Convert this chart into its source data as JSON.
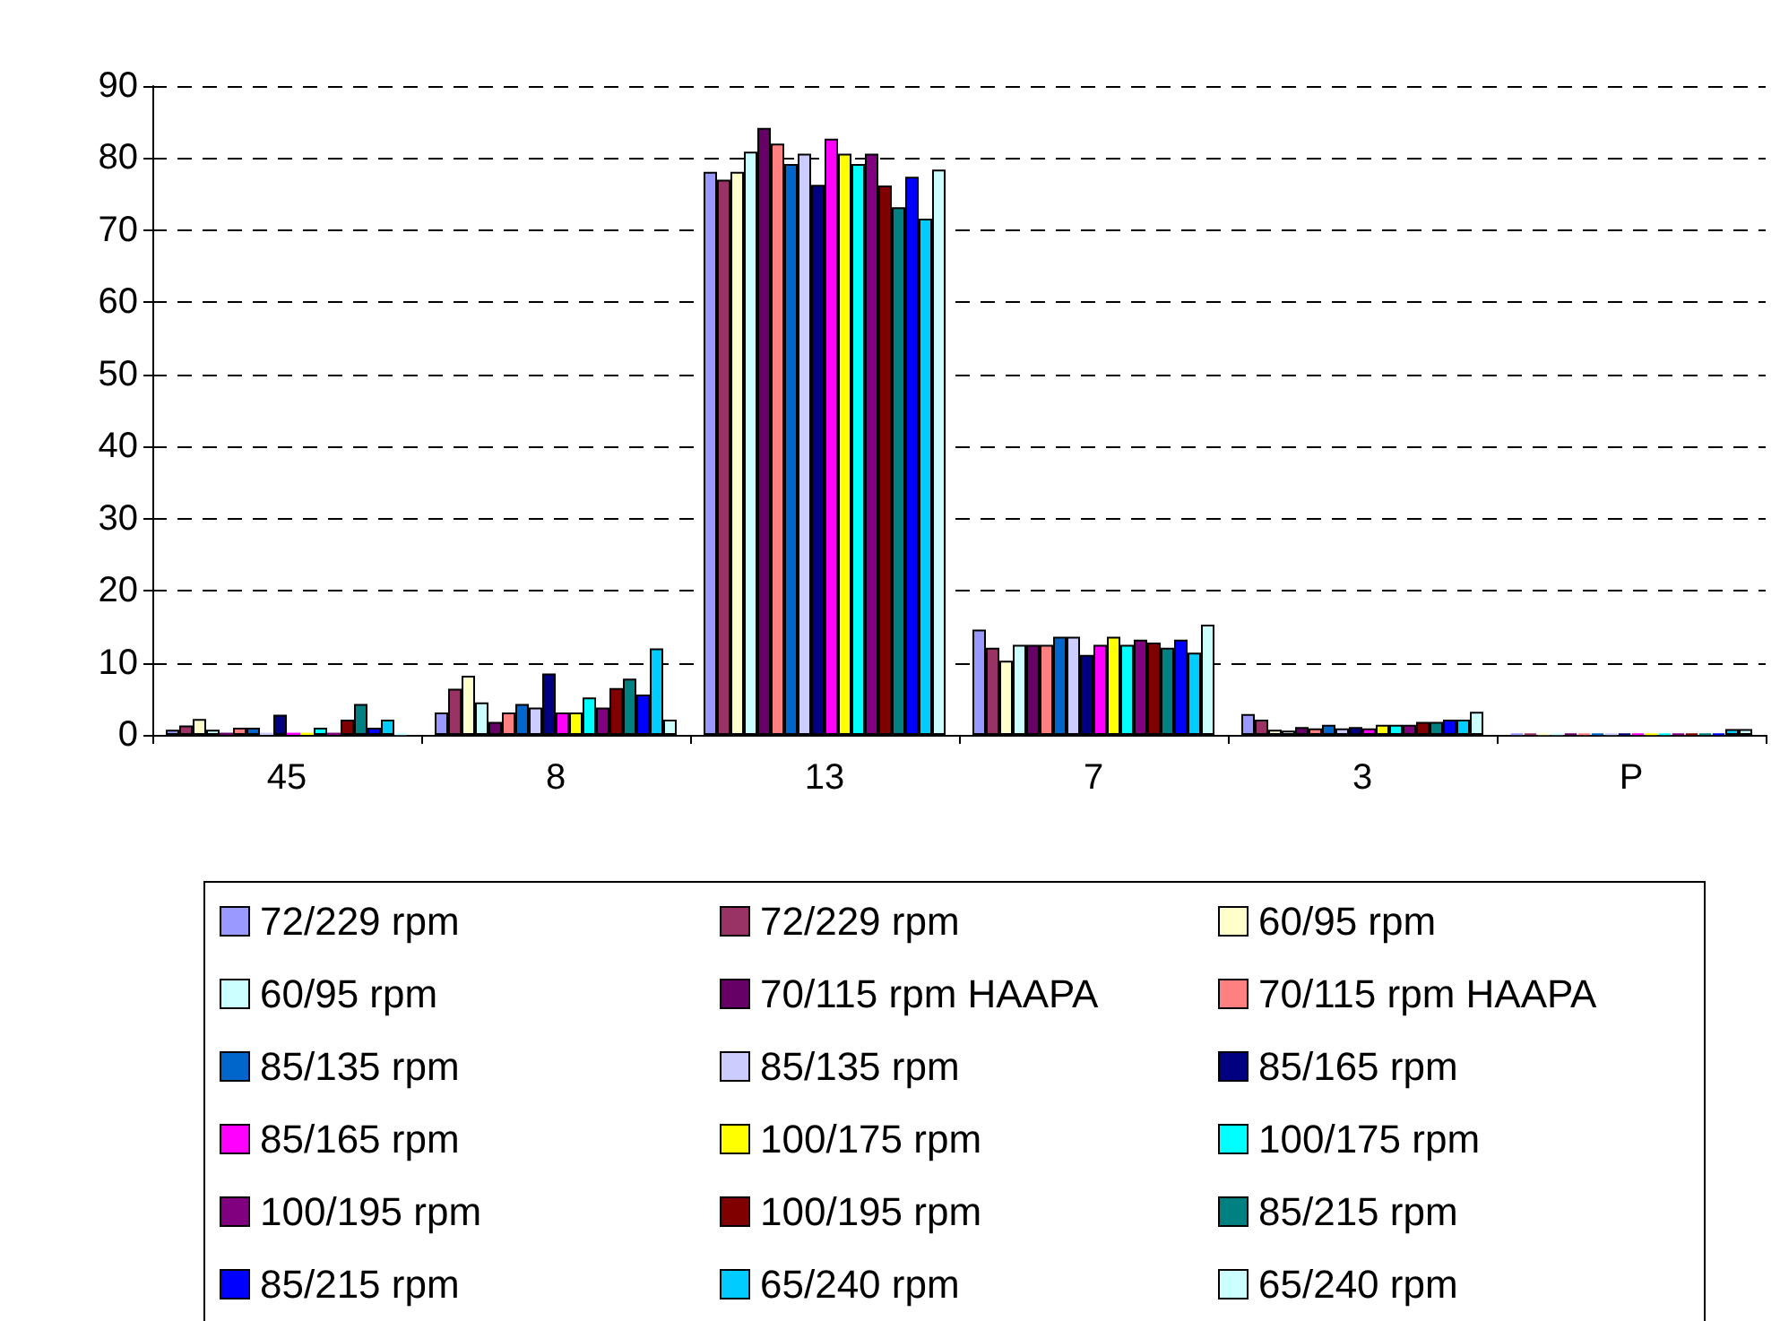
{
  "chart_data": {
    "type": "bar",
    "categories": [
      "45",
      "8",
      "13",
      "7",
      "3",
      "P"
    ],
    "ylim": [
      0,
      90
    ],
    "yticks": [
      0,
      10,
      20,
      30,
      40,
      50,
      60,
      70,
      80,
      90
    ],
    "grid": "y",
    "legend": "bottom",
    "series": [
      {
        "name": "72/229 rpm",
        "color": "#9999ff",
        "values": [
          0.7,
          3.1,
          78.1,
          14.6,
          2.9,
          0.2
        ]
      },
      {
        "name": "72/229 rpm",
        "color": "#993366",
        "values": [
          1.3,
          6.4,
          77.0,
          12.1,
          2.1,
          0.2
        ]
      },
      {
        "name": "60/95 rpm",
        "color": "#ffffcc",
        "values": [
          2.2,
          8.2,
          78.1,
          10.3,
          0.7,
          0.2
        ]
      },
      {
        "name": "60/95 rpm",
        "color": "#ccffff",
        "values": [
          0.7,
          4.5,
          80.9,
          12.5,
          0.6,
          0.2
        ]
      },
      {
        "name": "70/115 rpm HAAPA",
        "color": "#660066",
        "values": [
          0.3,
          1.8,
          84.2,
          12.5,
          1.1,
          0.2
        ]
      },
      {
        "name": "70/115 rpm HAAPA",
        "color": "#ff8080",
        "values": [
          1.0,
          3.1,
          82.0,
          12.5,
          0.9,
          0.2
        ]
      },
      {
        "name": "85/135 rpm",
        "color": "#0066cc",
        "values": [
          1.0,
          4.3,
          79.2,
          13.6,
          1.4,
          0.2
        ]
      },
      {
        "name": "85/135 rpm",
        "color": "#ccccff",
        "values": [
          0.3,
          3.8,
          80.6,
          13.6,
          0.9,
          0.2
        ]
      },
      {
        "name": "85/165 rpm",
        "color": "#000080",
        "values": [
          2.8,
          8.5,
          76.3,
          11.1,
          1.1,
          0.2
        ]
      },
      {
        "name": "85/165 rpm",
        "color": "#ff00ff",
        "values": [
          0.3,
          3.1,
          82.7,
          12.5,
          0.9,
          0.2
        ]
      },
      {
        "name": "100/175 rpm",
        "color": "#ffff00",
        "values": [
          0.3,
          3.1,
          80.6,
          13.6,
          1.4,
          0.2
        ]
      },
      {
        "name": "100/175 rpm",
        "color": "#00ffff",
        "values": [
          1.0,
          5.2,
          79.2,
          12.5,
          1.4,
          0.2
        ]
      },
      {
        "name": "100/195 rpm",
        "color": "#800080",
        "values": [
          0.3,
          3.8,
          80.6,
          13.2,
          1.4,
          0.2
        ]
      },
      {
        "name": "100/195 rpm",
        "color": "#800000",
        "values": [
          2.1,
          6.5,
          76.2,
          12.8,
          1.8,
          0.2
        ]
      },
      {
        "name": "85/215 rpm",
        "color": "#008080",
        "values": [
          4.3,
          7.8,
          73.2,
          12.1,
          1.8,
          0.2
        ]
      },
      {
        "name": "85/215 rpm",
        "color": "#0000ff",
        "values": [
          1.0,
          5.6,
          77.4,
          13.2,
          2.1,
          0.2
        ]
      },
      {
        "name": "65/240 rpm",
        "color": "#00ccff",
        "values": [
          2.1,
          12.0,
          71.6,
          11.4,
          2.1,
          0.8
        ]
      },
      {
        "name": "65/240 rpm",
        "color": "#ccffff",
        "values": [
          0.2,
          2.1,
          78.4,
          15.3,
          3.2,
          0.8
        ]
      }
    ]
  }
}
